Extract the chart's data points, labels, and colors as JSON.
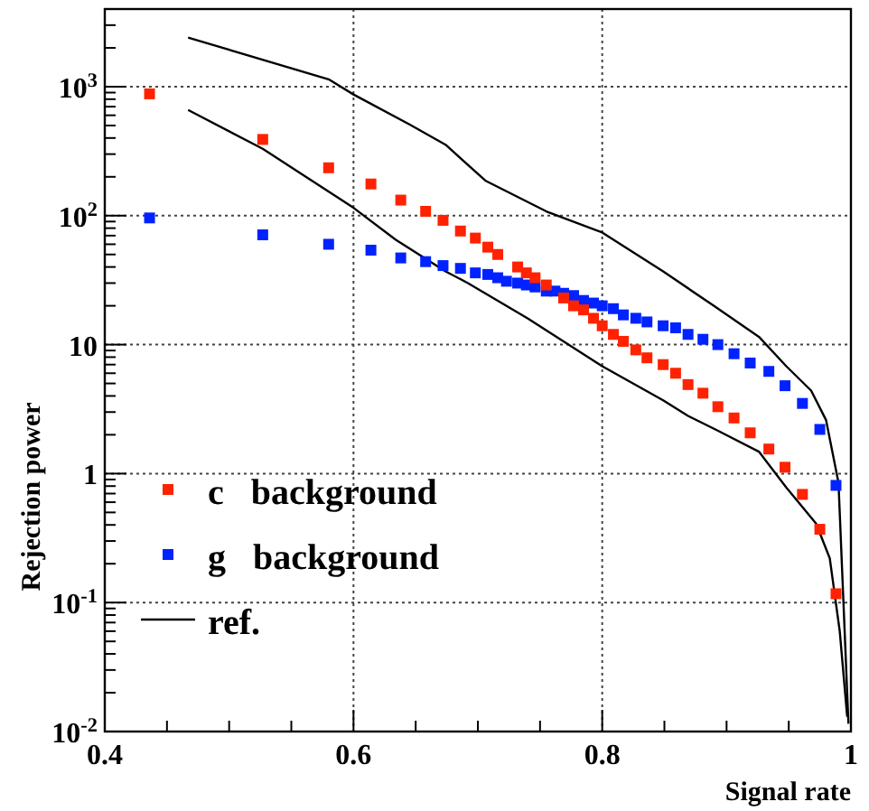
{
  "chart_data": {
    "type": "scatter",
    "xlabel": "Signal rate",
    "ylabel": "Rejection power",
    "log": "y",
    "grid": true,
    "legend": "bottom left",
    "marker": "square",
    "xlim": [
      0.4,
      1.0
    ],
    "ylim": [
      0.01,
      4000
    ],
    "xticks": [
      0.4,
      {
        "value": 0.45,
        "label": null
      },
      {
        "value": 0.5,
        "label": null
      },
      {
        "value": 0.55,
        "label": null
      },
      0.6,
      {
        "value": 0.65,
        "label": null
      },
      {
        "value": 0.7,
        "label": null
      },
      {
        "value": 0.75,
        "label": null
      },
      0.8,
      {
        "value": 0.85,
        "label": null
      },
      {
        "value": 0.9,
        "label": null
      },
      {
        "value": 0.95,
        "label": null
      },
      1
    ],
    "yticks": [
      {
        "value": 0.01,
        "label": "10$^{-2}$"
      },
      {
        "value": 0.02,
        "label": null
      },
      {
        "value": 0.03,
        "label": null
      },
      {
        "value": 0.04,
        "label": null
      },
      {
        "value": 0.05,
        "label": null
      },
      {
        "value": 0.06,
        "label": null
      },
      {
        "value": 0.07,
        "label": null
      },
      {
        "value": 0.08,
        "label": null
      },
      {
        "value": 0.09,
        "label": null
      },
      {
        "value": 0.1,
        "label": "10$^{-1}$"
      },
      {
        "value": 0.2,
        "label": null
      },
      {
        "value": 0.3,
        "label": null
      },
      {
        "value": 0.4,
        "label": null
      },
      {
        "value": 0.5,
        "label": null
      },
      {
        "value": 0.6,
        "label": null
      },
      {
        "value": 0.7,
        "label": null
      },
      {
        "value": 0.8,
        "label": null
      },
      {
        "value": 0.9,
        "label": null
      },
      {
        "value": 1,
        "label": "1"
      },
      {
        "value": 2,
        "label": null
      },
      {
        "value": 3,
        "label": null
      },
      {
        "value": 4,
        "label": null
      },
      {
        "value": 5,
        "label": null
      },
      {
        "value": 6,
        "label": null
      },
      {
        "value": 7,
        "label": null
      },
      {
        "value": 8,
        "label": null
      },
      {
        "value": 9,
        "label": null
      },
      {
        "value": 10,
        "label": "10"
      },
      {
        "value": 20,
        "label": null
      },
      {
        "value": 30,
        "label": null
      },
      {
        "value": 40,
        "label": null
      },
      {
        "value": 50,
        "label": null
      },
      {
        "value": 60,
        "label": null
      },
      {
        "value": 70,
        "label": null
      },
      {
        "value": 80,
        "label": null
      },
      {
        "value": 90,
        "label": null
      },
      {
        "value": 100,
        "label": "10$^{2}$"
      },
      {
        "value": 200,
        "label": null
      },
      {
        "value": 300,
        "label": null
      },
      {
        "value": 400,
        "label": null
      },
      {
        "value": 500,
        "label": null
      },
      {
        "value": 600,
        "label": null
      },
      {
        "value": 700,
        "label": null
      },
      {
        "value": 800,
        "label": null
      },
      {
        "value": 900,
        "label": null
      },
      {
        "value": 1000,
        "label": "10$^{3}$"
      },
      {
        "value": 2000,
        "label": null
      },
      {
        "value": 3000,
        "label": null
      }
    ],
    "series": [
      {
        "name": "c   background",
        "color": "#ff2200",
        "x": [
          0.436,
          0.527,
          0.58,
          0.614,
          0.638,
          0.658,
          0.672,
          0.686,
          0.698,
          0.708,
          0.716,
          0.732,
          0.739,
          0.746,
          0.755,
          0.769,
          0.777,
          0.785,
          0.793,
          0.8,
          0.809,
          0.817,
          0.827,
          0.836,
          0.849,
          0.859,
          0.869,
          0.881,
          0.893,
          0.906,
          0.919,
          0.934,
          0.947,
          0.961,
          0.975,
          0.988
        ],
        "values": [
          880,
          390,
          235,
          176,
          132,
          108,
          92,
          76,
          67,
          57,
          50,
          40,
          36,
          33,
          29,
          23,
          20,
          18.6,
          16,
          14,
          12,
          10.6,
          9.1,
          7.9,
          7,
          6,
          4.9,
          4.2,
          3.3,
          2.7,
          2.07,
          1.55,
          1.12,
          0.69,
          0.37,
          0.117
        ]
      },
      {
        "name": "g   background",
        "color": "#0022ff",
        "x": [
          0.436,
          0.527,
          0.58,
          0.614,
          0.638,
          0.658,
          0.672,
          0.686,
          0.698,
          0.708,
          0.716,
          0.723,
          0.732,
          0.739,
          0.746,
          0.755,
          0.762,
          0.769,
          0.777,
          0.785,
          0.793,
          0.8,
          0.809,
          0.817,
          0.827,
          0.836,
          0.849,
          0.859,
          0.869,
          0.881,
          0.893,
          0.906,
          0.919,
          0.934,
          0.947,
          0.961,
          0.975,
          0.988
        ],
        "values": [
          96,
          71,
          60,
          54,
          47,
          44,
          41,
          39,
          36,
          35,
          33,
          31,
          30,
          29,
          28,
          26,
          26,
          25,
          24,
          22,
          21,
          20,
          19,
          17,
          16,
          15,
          14,
          13.5,
          12,
          11,
          10,
          8.5,
          7.2,
          6.2,
          4.8,
          3.5,
          2.2,
          0.81
        ]
      },
      {
        "name": "ref.",
        "type": "line",
        "marker": "none",
        "color": "#000000",
        "x": [
          0.467,
          0.58,
          0.6,
          0.645,
          0.674,
          0.706,
          0.755,
          0.8,
          0.849,
          0.891,
          0.926,
          0.948,
          0.968,
          0.98,
          0.99,
          0.994,
          0.998
        ],
        "values": [
          2400,
          1140,
          870,
          510,
          355,
          187,
          108,
          74,
          37,
          19.6,
          11.5,
          6.8,
          4.4,
          2.6,
          0.85,
          0.1,
          0.0115
        ]
      },
      {
        "type": "line",
        "marker": "none",
        "color": "#000000",
        "x": [
          0.467,
          0.527,
          0.6,
          0.634,
          0.674,
          0.692,
          0.74,
          0.8,
          0.849,
          0.869,
          0.891,
          0.926,
          0.948,
          0.972,
          0.983,
          0.991,
          0.997
        ],
        "values": [
          660,
          330,
          115,
          65,
          37,
          30,
          16,
          6.8,
          3.7,
          2.8,
          2.2,
          1.48,
          0.78,
          0.41,
          0.22,
          0.06,
          0.013
        ]
      }
    ]
  }
}
